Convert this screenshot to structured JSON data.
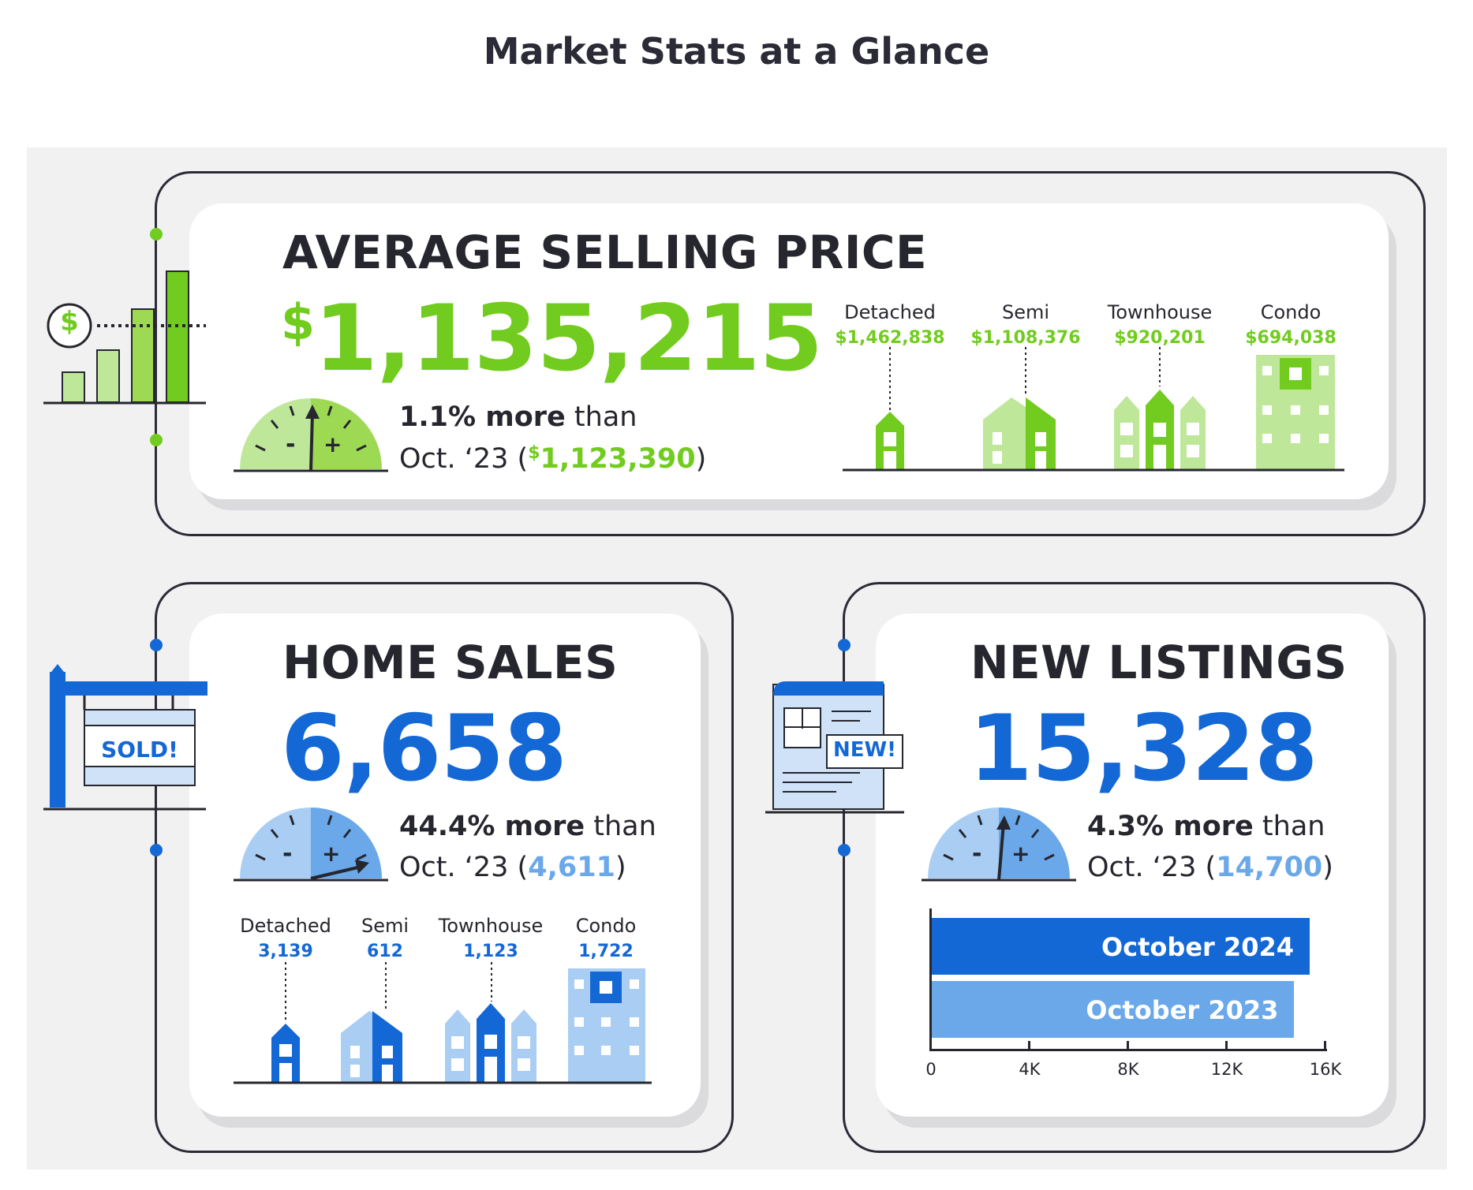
{
  "page": {
    "title": "Market Stats at a Glance"
  },
  "colors": {
    "green": "#72cc1f",
    "light_green": "#bfe79a",
    "blue": "#1468d6",
    "light_blue": "#6aa8ea",
    "dark": "#26262e"
  },
  "avg_price": {
    "heading": "AVERAGE SELLING PRICE",
    "currency": "$",
    "value": "1,135,215",
    "change_pct": "1.1% more",
    "change_word": "than",
    "prev_period": "Oct. ‘23 (",
    "prev_currency": "$",
    "prev_value": "1,123,390",
    "prev_close": ")",
    "icon_dollar": "$",
    "types": [
      {
        "label": "Detached",
        "value": "$1,462,838"
      },
      {
        "label": "Semi",
        "value": "$1,108,376"
      },
      {
        "label": "Townhouse",
        "value": "$920,201"
      },
      {
        "label": "Condo",
        "value": "$694,038"
      }
    ]
  },
  "home_sales": {
    "heading": "HOME SALES",
    "value": "6,658",
    "change_pct": "44.4% more",
    "change_word": "than",
    "prev_period": "Oct. ‘23 (",
    "prev_value": "4,611",
    "prev_close": ")",
    "sign_text": "SOLD!",
    "types": [
      {
        "label": "Detached",
        "value": "3,139"
      },
      {
        "label": "Semi",
        "value": "612"
      },
      {
        "label": "Townhouse",
        "value": "1,123"
      },
      {
        "label": "Condo",
        "value": "1,722"
      }
    ]
  },
  "new_listings": {
    "heading": "NEW LISTINGS",
    "value": "15,328",
    "change_pct": "4.3% more",
    "change_word": "than",
    "prev_period": "Oct. ‘23 (",
    "prev_value": "14,700",
    "prev_close": ")",
    "doc_badge": "NEW!",
    "chart_data": {
      "type": "bar",
      "orientation": "horizontal",
      "categories": [
        "October 2024",
        "October 2023"
      ],
      "values": [
        15328,
        14700
      ],
      "xlim": [
        0,
        16000
      ],
      "ticks": [
        "0",
        "4K",
        "8K",
        "12K",
        "16K"
      ]
    }
  }
}
